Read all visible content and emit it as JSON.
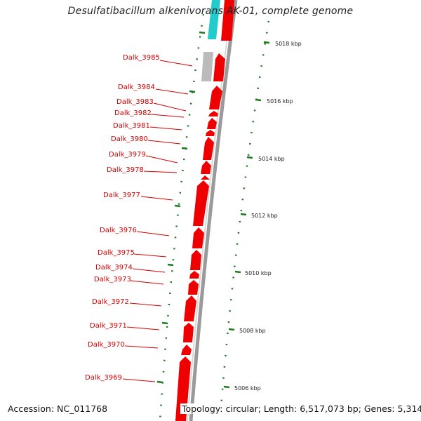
{
  "title": "Desulfatibacillum alkenivorans AK-01, complete genome",
  "accession_text": "Accession: NC_011768",
  "topology_text": "Topology: circular; Length: 6,517,073 bp; Genes: 5,314",
  "colors": {
    "gene_forward": "#ee0000",
    "gene_other": "#bbbbbb",
    "rna": "#22cccc",
    "backbone": "#999999",
    "label": "#d40000",
    "ticks": "#1d7a1d"
  },
  "scale_labels": [
    "5018 kbp",
    "5016 kbp",
    "5014 kbp",
    "5012 kbp",
    "5010 kbp",
    "5008 kbp",
    "5006 kbp"
  ],
  "gene_labels": [
    "Dalk_3985",
    "Dalk_3984",
    "Dalk_3983",
    "Dalk_3982",
    "Dalk_3981",
    "Dalk_3980",
    "Dalk_3979",
    "Dalk_3978",
    "Dalk_3977",
    "Dalk_3976",
    "Dalk_3975",
    "Dalk_3974",
    "Dalk_3973",
    "Dalk_3972",
    "Dalk_3971",
    "Dalk_3970",
    "Dalk_3969"
  ]
}
